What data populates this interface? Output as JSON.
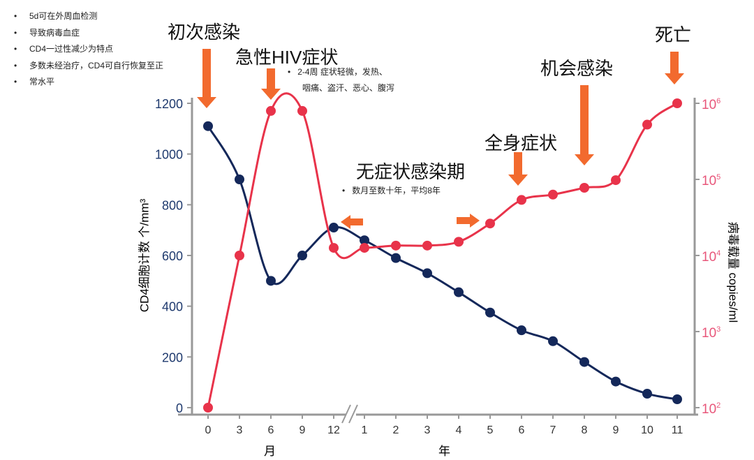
{
  "notes_left": [
    "5d可在外周血检测",
    "导致病毒血症",
    "CD4一过性减少为特点",
    "多数未经治疗，CD4可自行恢复至正",
    "常水平"
  ],
  "annotations": {
    "primary_infection": "初次感染",
    "acute_hiv": "急性HIV症状",
    "acute_note_1": "2-4周 症状轻微，发热、",
    "acute_note_2": "咽痛、盗汗、恶心、腹泻",
    "asymptomatic": "无症状感染期",
    "asymptomatic_note": "数月至数十年，平均8年",
    "systemic": "全身症状",
    "opportunistic": "机会感染",
    "death": "死亡"
  },
  "colors": {
    "cd4": "#14285a",
    "viral": "#e8334a",
    "arrow": "#f26a2e",
    "axis": "#999999",
    "left_tick": "#1f3a6e",
    "right_tick": "#e8567a"
  },
  "chart_data": {
    "type": "line",
    "categories": [
      "0",
      "3",
      "6",
      "9",
      "12",
      "1",
      "2",
      "3",
      "4",
      "5",
      "6",
      "7",
      "8",
      "9",
      "10",
      "11"
    ],
    "x_unit_labels": {
      "months": "月",
      "years": "年"
    },
    "ylabel_left": "CD4细胞计数  个/mm³",
    "ylabel_right": "病毒载量 copies/ml",
    "ylim_left": [
      0,
      1200
    ],
    "left_ticks": [
      "0",
      "200",
      "400",
      "600",
      "800",
      "1000",
      "1200"
    ],
    "ylim_right_log10": [
      2,
      6
    ],
    "right_ticks": [
      {
        "base": "10",
        "exp": "2"
      },
      {
        "base": "10",
        "exp": "3"
      },
      {
        "base": "10",
        "exp": "4"
      },
      {
        "base": "10",
        "exp": "5"
      },
      {
        "base": "10",
        "exp": "6"
      }
    ],
    "series": [
      {
        "name": "CD4",
        "axis": "left",
        "values": [
          1110,
          900,
          500,
          600,
          710,
          660,
          590,
          530,
          455,
          375,
          305,
          262,
          180,
          103,
          55,
          33
        ]
      },
      {
        "name": "病毒载量(log10)",
        "axis": "right",
        "values": [
          2.0,
          4.0,
          5.9,
          5.9,
          4.1,
          4.1,
          4.13,
          4.13,
          4.18,
          4.42,
          4.73,
          4.8,
          4.89,
          4.99,
          5.72,
          6.0
        ]
      }
    ]
  }
}
